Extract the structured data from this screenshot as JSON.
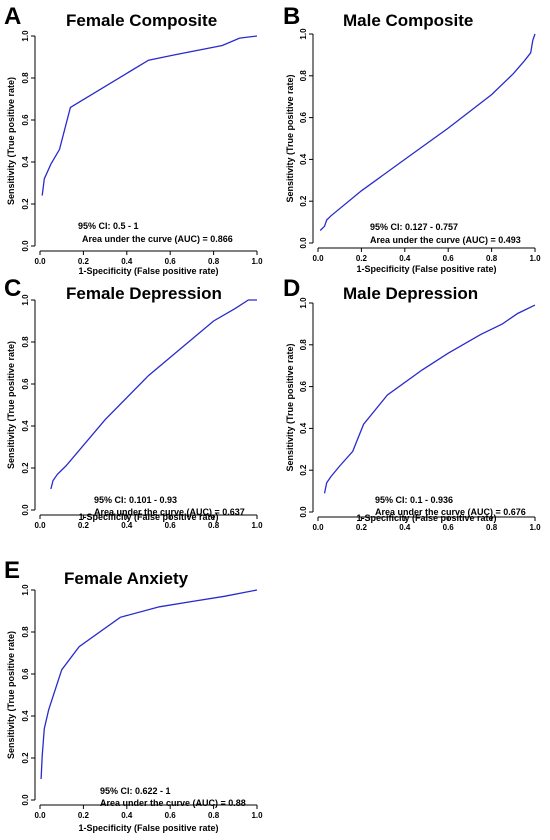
{
  "chart_data": [
    {
      "type": "line",
      "panel_letter": "A",
      "title": "Female Composite",
      "xlabel": "1-Specificity (False positive rate)",
      "ylabel": "Sensitivity (True positive rate)",
      "xlim": [
        0,
        1
      ],
      "ylim": [
        0,
        1
      ],
      "xticks": [
        "0.0",
        "0.2",
        "0.4",
        "0.6",
        "0.8",
        "1.0"
      ],
      "yticks": [
        "0.0",
        "0.2",
        "0.4",
        "0.6",
        "0.8",
        "1.0"
      ],
      "annotations": [
        "95% CI: 0.5 - 1",
        "Area under the curve (AUC) = 0.866"
      ],
      "series": [
        {
          "color": "#2a2acc",
          "x": [
            0.01,
            0.02,
            0.05,
            0.09,
            0.14,
            0.5,
            0.62,
            0.84,
            0.92,
            1.0
          ],
          "y": [
            0.24,
            0.32,
            0.39,
            0.46,
            0.66,
            0.885,
            0.91,
            0.955,
            0.99,
            1.0
          ]
        }
      ]
    },
    {
      "type": "line",
      "panel_letter": "B",
      "title": "Male Composite",
      "xlabel": "1-Specificity (False positive rate)",
      "ylabel": "Sensitivity (True positive rate)",
      "xlim": [
        0,
        1
      ],
      "ylim": [
        0,
        1
      ],
      "xticks": [
        "0.0",
        "0.2",
        "0.4",
        "0.6",
        "0.8",
        "1.0"
      ],
      "yticks": [
        "0.0",
        "0.2",
        "0.4",
        "0.6",
        "0.8",
        "1.0"
      ],
      "annotations": [
        "95% CI: 0.127 - 0.757",
        "Area under the curve (AUC) = 0.493"
      ],
      "series": [
        {
          "color": "#2a2acc",
          "x": [
            0.01,
            0.03,
            0.04,
            0.06,
            0.2,
            0.4,
            0.6,
            0.8,
            0.9,
            0.95,
            0.98,
            0.99,
            1.0
          ],
          "y": [
            0.06,
            0.08,
            0.11,
            0.13,
            0.25,
            0.4,
            0.55,
            0.71,
            0.81,
            0.87,
            0.91,
            0.97,
            1.0
          ]
        }
      ]
    },
    {
      "type": "line",
      "panel_letter": "C",
      "title": "Female Depression",
      "xlabel": "1-Specificity (False positive rate)",
      "ylabel": "Sensitivity (True positive rate)",
      "xlim": [
        0,
        1
      ],
      "ylim": [
        0,
        1
      ],
      "xticks": [
        "0.0",
        "0.2",
        "0.4",
        "0.6",
        "0.8",
        "1.0"
      ],
      "yticks": [
        "0.0",
        "0.2",
        "0.4",
        "0.6",
        "0.8",
        "1.0"
      ],
      "annotations": [
        "95% CI: 0.101 - 0.93",
        "Area under the curve (AUC) = 0.637"
      ],
      "series": [
        {
          "color": "#2a2acc",
          "x": [
            0.05,
            0.06,
            0.08,
            0.12,
            0.3,
            0.5,
            0.65,
            0.8,
            0.9,
            0.96,
            1.0
          ],
          "y": [
            0.1,
            0.14,
            0.17,
            0.21,
            0.43,
            0.64,
            0.77,
            0.9,
            0.96,
            1.0,
            1.0
          ]
        }
      ]
    },
    {
      "type": "line",
      "panel_letter": "D",
      "title": "Male Depression",
      "xlabel": "1-Specificity (False positive rate)",
      "ylabel": "Sensitivity (True positive rate)",
      "xlim": [
        0,
        1
      ],
      "ylim": [
        0,
        1
      ],
      "xticks": [
        "0.0",
        "0.2",
        "0.4",
        "0.6",
        "0.8",
        "1.0"
      ],
      "yticks": [
        "0.0",
        "0.2",
        "0.4",
        "0.6",
        "0.8",
        "1.0"
      ],
      "annotations": [
        "95% CI: 0.1 - 0.936",
        "Area under the curve (AUC) = 0.676"
      ],
      "series": [
        {
          "color": "#2a2acc",
          "x": [
            0.03,
            0.04,
            0.06,
            0.1,
            0.16,
            0.21,
            0.32,
            0.48,
            0.6,
            0.75,
            0.85,
            0.92,
            1.0
          ],
          "y": [
            0.09,
            0.14,
            0.17,
            0.22,
            0.29,
            0.42,
            0.56,
            0.68,
            0.76,
            0.85,
            0.9,
            0.95,
            0.99
          ]
        }
      ]
    },
    {
      "type": "line",
      "panel_letter": "E",
      "title": "Female Anxiety",
      "xlabel": "1-Specificity (False positive rate)",
      "ylabel": "Sensitivity (True positive rate)",
      "xlim": [
        0,
        1
      ],
      "ylim": [
        0,
        1
      ],
      "xticks": [
        "0.0",
        "0.2",
        "0.4",
        "0.6",
        "0.8",
        "1.0"
      ],
      "yticks": [
        "0.0",
        "0.2",
        "0.4",
        "0.6",
        "0.8",
        "1.0"
      ],
      "annotations": [
        "95% CI: 0.622 - 1",
        "Area under the curve (AUC) = 0.88"
      ],
      "series": [
        {
          "color": "#2a2acc",
          "x": [
            0.005,
            0.01,
            0.02,
            0.04,
            0.1,
            0.18,
            0.37,
            0.55,
            0.7,
            0.85,
            1.0
          ],
          "y": [
            0.1,
            0.21,
            0.34,
            0.43,
            0.62,
            0.73,
            0.87,
            0.92,
            0.945,
            0.97,
            1.0
          ]
        }
      ]
    }
  ]
}
